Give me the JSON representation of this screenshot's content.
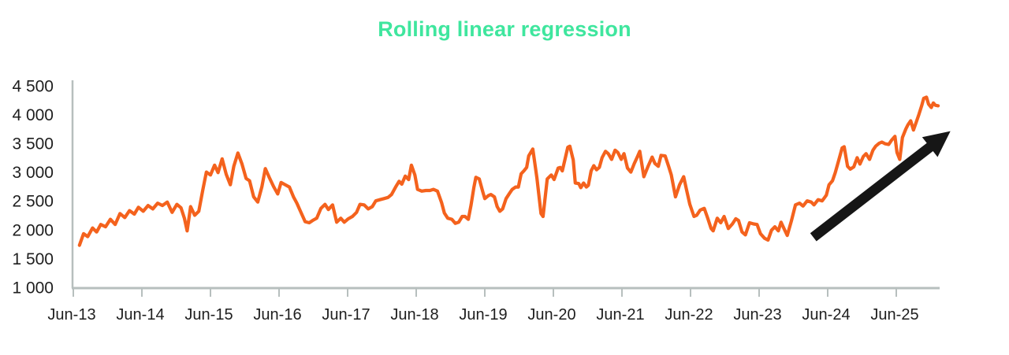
{
  "title": "Rolling linear regression",
  "colors": {
    "title_green": "#3FE69E",
    "series_orange": "#F4621D",
    "axis_gray": "#B7BFBE",
    "tick_label_dark": "#1E1E1E",
    "arrow_black": "#161616",
    "background": "#FFFFFF"
  },
  "chart_data": {
    "type": "line",
    "title": "Rolling linear regression",
    "x_unit": "years since Jun-2013 (integer = each June)",
    "x_tick_labels": [
      "Jun-13",
      "Jun-14",
      "Jun-15",
      "Jun-16",
      "Jun-17",
      "Jun-18",
      "Jun-19",
      "Jun-20",
      "Jun-21",
      "Jun-22",
      "Jun-23",
      "Jun-24",
      "Jun-25"
    ],
    "x_tick_positions": [
      0,
      1,
      2,
      3,
      4,
      5,
      6,
      7,
      8,
      9,
      10,
      11,
      12
    ],
    "xlim": [
      -0.05,
      12.65
    ],
    "y_ticks": [
      1000,
      1500,
      2000,
      2500,
      3000,
      3500,
      4000,
      4500
    ],
    "y_tick_labels": [
      "1 000",
      "1 500",
      "2 000",
      "2 500",
      "3 000",
      "3 500",
      "4 000",
      "4 500"
    ],
    "ylim": [
      1000,
      4500
    ],
    "grid": false,
    "legend": "none",
    "series_name": "rolling-regression-value",
    "points": [
      [
        0.09,
        1730
      ],
      [
        0.15,
        1930
      ],
      [
        0.21,
        1880
      ],
      [
        0.28,
        2030
      ],
      [
        0.34,
        1960
      ],
      [
        0.4,
        2090
      ],
      [
        0.47,
        2050
      ],
      [
        0.54,
        2180
      ],
      [
        0.61,
        2090
      ],
      [
        0.68,
        2280
      ],
      [
        0.75,
        2210
      ],
      [
        0.82,
        2330
      ],
      [
        0.89,
        2270
      ],
      [
        0.95,
        2390
      ],
      [
        1.02,
        2320
      ],
      [
        1.09,
        2420
      ],
      [
        1.16,
        2360
      ],
      [
        1.23,
        2460
      ],
      [
        1.3,
        2420
      ],
      [
        1.37,
        2480
      ],
      [
        1.44,
        2300
      ],
      [
        1.51,
        2440
      ],
      [
        1.57,
        2380
      ],
      [
        1.62,
        2200
      ],
      [
        1.66,
        1980
      ],
      [
        1.71,
        2400
      ],
      [
        1.77,
        2250
      ],
      [
        1.83,
        2320
      ],
      [
        1.89,
        2700
      ],
      [
        1.94,
        3000
      ],
      [
        2.0,
        2950
      ],
      [
        2.06,
        3120
      ],
      [
        2.11,
        2990
      ],
      [
        2.17,
        3230
      ],
      [
        2.23,
        2960
      ],
      [
        2.29,
        2780
      ],
      [
        2.34,
        3100
      ],
      [
        2.4,
        3330
      ],
      [
        2.46,
        3140
      ],
      [
        2.52,
        2890
      ],
      [
        2.57,
        2850
      ],
      [
        2.63,
        2570
      ],
      [
        2.69,
        2480
      ],
      [
        2.75,
        2750
      ],
      [
        2.8,
        3060
      ],
      [
        2.86,
        2900
      ],
      [
        2.92,
        2750
      ],
      [
        2.98,
        2620
      ],
      [
        3.03,
        2820
      ],
      [
        3.09,
        2780
      ],
      [
        3.15,
        2740
      ],
      [
        3.21,
        2570
      ],
      [
        3.26,
        2460
      ],
      [
        3.32,
        2300
      ],
      [
        3.38,
        2140
      ],
      [
        3.44,
        2120
      ],
      [
        3.49,
        2160
      ],
      [
        3.55,
        2200
      ],
      [
        3.61,
        2370
      ],
      [
        3.67,
        2440
      ],
      [
        3.72,
        2350
      ],
      [
        3.78,
        2430
      ],
      [
        3.84,
        2130
      ],
      [
        3.9,
        2200
      ],
      [
        3.95,
        2130
      ],
      [
        4.01,
        2190
      ],
      [
        4.07,
        2230
      ],
      [
        4.13,
        2300
      ],
      [
        4.18,
        2440
      ],
      [
        4.24,
        2430
      ],
      [
        4.3,
        2360
      ],
      [
        4.36,
        2400
      ],
      [
        4.41,
        2500
      ],
      [
        4.47,
        2520
      ],
      [
        4.53,
        2540
      ],
      [
        4.59,
        2560
      ],
      [
        4.64,
        2610
      ],
      [
        4.7,
        2740
      ],
      [
        4.75,
        2840
      ],
      [
        4.79,
        2790
      ],
      [
        4.84,
        2930
      ],
      [
        4.89,
        2870
      ],
      [
        4.93,
        3120
      ],
      [
        4.98,
        2950
      ],
      [
        5.02,
        2700
      ],
      [
        5.08,
        2670
      ],
      [
        5.14,
        2680
      ],
      [
        5.2,
        2680
      ],
      [
        5.25,
        2700
      ],
      [
        5.31,
        2670
      ],
      [
        5.37,
        2470
      ],
      [
        5.41,
        2290
      ],
      [
        5.46,
        2200
      ],
      [
        5.52,
        2180
      ],
      [
        5.57,
        2110
      ],
      [
        5.62,
        2130
      ],
      [
        5.67,
        2230
      ],
      [
        5.71,
        2230
      ],
      [
        5.76,
        2180
      ],
      [
        5.8,
        2430
      ],
      [
        5.84,
        2730
      ],
      [
        5.87,
        2910
      ],
      [
        5.92,
        2880
      ],
      [
        5.97,
        2660
      ],
      [
        6.0,
        2540
      ],
      [
        6.05,
        2590
      ],
      [
        6.09,
        2610
      ],
      [
        6.14,
        2570
      ],
      [
        6.18,
        2400
      ],
      [
        6.22,
        2320
      ],
      [
        6.26,
        2360
      ],
      [
        6.31,
        2540
      ],
      [
        6.36,
        2630
      ],
      [
        6.4,
        2700
      ],
      [
        6.45,
        2740
      ],
      [
        6.49,
        2740
      ],
      [
        6.53,
        2970
      ],
      [
        6.57,
        3020
      ],
      [
        6.61,
        3080
      ],
      [
        6.64,
        3280
      ],
      [
        6.7,
        3400
      ],
      [
        6.76,
        2900
      ],
      [
        6.82,
        2280
      ],
      [
        6.85,
        2230
      ],
      [
        6.91,
        2880
      ],
      [
        6.97,
        2950
      ],
      [
        7.01,
        2870
      ],
      [
        7.07,
        3070
      ],
      [
        7.1,
        3080
      ],
      [
        7.13,
        3020
      ],
      [
        7.21,
        3430
      ],
      [
        7.24,
        3450
      ],
      [
        7.29,
        3210
      ],
      [
        7.32,
        2810
      ],
      [
        7.37,
        2800
      ],
      [
        7.4,
        2730
      ],
      [
        7.44,
        2810
      ],
      [
        7.48,
        2740
      ],
      [
        7.51,
        2770
      ],
      [
        7.55,
        3020
      ],
      [
        7.59,
        3110
      ],
      [
        7.63,
        3040
      ],
      [
        7.67,
        3080
      ],
      [
        7.71,
        3250
      ],
      [
        7.76,
        3360
      ],
      [
        7.8,
        3320
      ],
      [
        7.85,
        3220
      ],
      [
        7.9,
        3380
      ],
      [
        7.94,
        3340
      ],
      [
        7.99,
        3220
      ],
      [
        8.03,
        3320
      ],
      [
        8.08,
        3070
      ],
      [
        8.13,
        3000
      ],
      [
        8.18,
        3150
      ],
      [
        8.22,
        3250
      ],
      [
        8.26,
        3360
      ],
      [
        8.32,
        2920
      ],
      [
        8.38,
        3100
      ],
      [
        8.44,
        3260
      ],
      [
        8.48,
        3150
      ],
      [
        8.53,
        3100
      ],
      [
        8.57,
        3290
      ],
      [
        8.63,
        3280
      ],
      [
        8.68,
        3100
      ],
      [
        8.72,
        2950
      ],
      [
        8.78,
        2570
      ],
      [
        8.84,
        2780
      ],
      [
        8.9,
        2920
      ],
      [
        8.94,
        2700
      ],
      [
        8.99,
        2440
      ],
      [
        9.05,
        2230
      ],
      [
        9.09,
        2250
      ],
      [
        9.14,
        2340
      ],
      [
        9.2,
        2370
      ],
      [
        9.25,
        2200
      ],
      [
        9.3,
        2020
      ],
      [
        9.33,
        1980
      ],
      [
        9.39,
        2200
      ],
      [
        9.44,
        2120
      ],
      [
        9.49,
        2230
      ],
      [
        9.55,
        2020
      ],
      [
        9.61,
        2100
      ],
      [
        9.66,
        2190
      ],
      [
        9.7,
        2160
      ],
      [
        9.75,
        1960
      ],
      [
        9.8,
        1910
      ],
      [
        9.86,
        2120
      ],
      [
        9.92,
        2100
      ],
      [
        9.97,
        2090
      ],
      [
        10.02,
        1930
      ],
      [
        10.08,
        1850
      ],
      [
        10.13,
        1820
      ],
      [
        10.18,
        1990
      ],
      [
        10.23,
        2050
      ],
      [
        10.28,
        1980
      ],
      [
        10.32,
        2130
      ],
      [
        10.37,
        2000
      ],
      [
        10.41,
        1900
      ],
      [
        10.47,
        2150
      ],
      [
        10.53,
        2430
      ],
      [
        10.59,
        2460
      ],
      [
        10.64,
        2410
      ],
      [
        10.7,
        2500
      ],
      [
        10.76,
        2480
      ],
      [
        10.8,
        2430
      ],
      [
        10.86,
        2520
      ],
      [
        10.92,
        2500
      ],
      [
        10.98,
        2600
      ],
      [
        11.02,
        2780
      ],
      [
        11.07,
        2850
      ],
      [
        11.11,
        2990
      ],
      [
        11.16,
        3200
      ],
      [
        11.21,
        3420
      ],
      [
        11.24,
        3440
      ],
      [
        11.29,
        3100
      ],
      [
        11.33,
        3050
      ],
      [
        11.38,
        3090
      ],
      [
        11.43,
        3250
      ],
      [
        11.47,
        3140
      ],
      [
        11.52,
        3270
      ],
      [
        11.56,
        3320
      ],
      [
        11.61,
        3220
      ],
      [
        11.66,
        3380
      ],
      [
        11.7,
        3450
      ],
      [
        11.75,
        3500
      ],
      [
        11.79,
        3520
      ],
      [
        11.84,
        3490
      ],
      [
        11.89,
        3480
      ],
      [
        11.93,
        3550
      ],
      [
        11.98,
        3620
      ],
      [
        12.01,
        3340
      ],
      [
        12.05,
        3220
      ],
      [
        12.09,
        3600
      ],
      [
        12.14,
        3750
      ],
      [
        12.17,
        3820
      ],
      [
        12.21,
        3890
      ],
      [
        12.25,
        3730
      ],
      [
        12.29,
        3860
      ],
      [
        12.33,
        4000
      ],
      [
        12.37,
        4150
      ],
      [
        12.4,
        4280
      ],
      [
        12.44,
        4300
      ],
      [
        12.47,
        4180
      ],
      [
        12.51,
        4120
      ],
      [
        12.54,
        4200
      ],
      [
        12.57,
        4160
      ],
      [
        12.61,
        4150
      ]
    ],
    "annotations": [
      {
        "kind": "trend-arrow",
        "meaning": "upward trend highlight",
        "from": [
          10.79,
          1870
        ],
        "to": [
          12.79,
          3710
        ],
        "color": "#161616"
      }
    ]
  }
}
